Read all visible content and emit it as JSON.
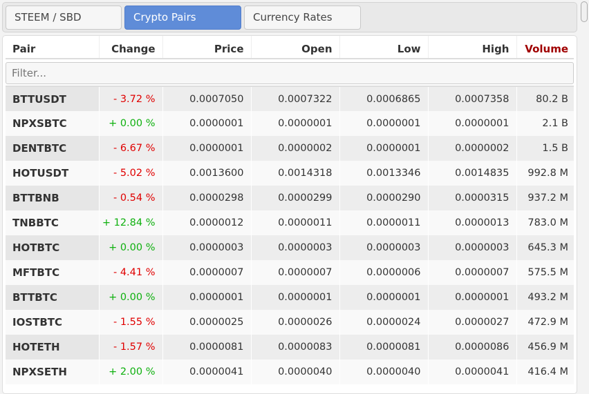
{
  "tabs": [
    {
      "label": "STEEM / SBD",
      "active": false
    },
    {
      "label": "Crypto Pairs",
      "active": true
    },
    {
      "label": "Currency Rates",
      "active": false
    }
  ],
  "table": {
    "headers": [
      "Pair",
      "Change",
      "Price",
      "Open",
      "Low",
      "High",
      "Volume"
    ],
    "filter_placeholder": "Filter...",
    "rows": [
      [
        "BTTUSDT",
        "- 3.72 %",
        "0.0007050",
        "0.0007322",
        "0.0006865",
        "0.0007358",
        "80.2 B"
      ],
      [
        "NPXSBTC",
        "+ 0.00 %",
        "0.0000001",
        "0.0000001",
        "0.0000001",
        "0.0000001",
        "2.1 B"
      ],
      [
        "DENTBTC",
        "- 6.67 %",
        "0.0000001",
        "0.0000002",
        "0.0000001",
        "0.0000002",
        "1.5 B"
      ],
      [
        "HOTUSDT",
        "- 5.02 %",
        "0.0013600",
        "0.0014318",
        "0.0013346",
        "0.0014835",
        "992.8 M"
      ],
      [
        "BTTBNB",
        "- 0.54 %",
        "0.0000298",
        "0.0000299",
        "0.0000290",
        "0.0000315",
        "937.2 M"
      ],
      [
        "TNBBTC",
        "+ 12.84 %",
        "0.0000012",
        "0.0000011",
        "0.0000011",
        "0.0000013",
        "783.0 M"
      ],
      [
        "HOTBTC",
        "+ 0.00 %",
        "0.0000003",
        "0.0000003",
        "0.0000003",
        "0.0000003",
        "645.3 M"
      ],
      [
        "MFTBTC",
        "- 4.41 %",
        "0.0000007",
        "0.0000007",
        "0.0000006",
        "0.0000007",
        "575.5 M"
      ],
      [
        "BTTBTC",
        "+ 0.00 %",
        "0.0000001",
        "0.0000001",
        "0.0000001",
        "0.0000001",
        "493.2 M"
      ],
      [
        "IOSTBTC",
        "- 1.55 %",
        "0.0000025",
        "0.0000026",
        "0.0000024",
        "0.0000027",
        "472.9 M"
      ],
      [
        "HOTETH",
        "- 1.57 %",
        "0.0000081",
        "0.0000083",
        "0.0000081",
        "0.0000086",
        "456.9 M"
      ],
      [
        "NPXSETH",
        "+ 2.00 %",
        "0.0000041",
        "0.0000040",
        "0.0000040",
        "0.0000041",
        "416.4 M"
      ]
    ]
  },
  "colors": {
    "active_tab": "#5f8cd8",
    "negative": "#e00000",
    "positive": "#0eb00e",
    "volume_header": "#a00000"
  }
}
